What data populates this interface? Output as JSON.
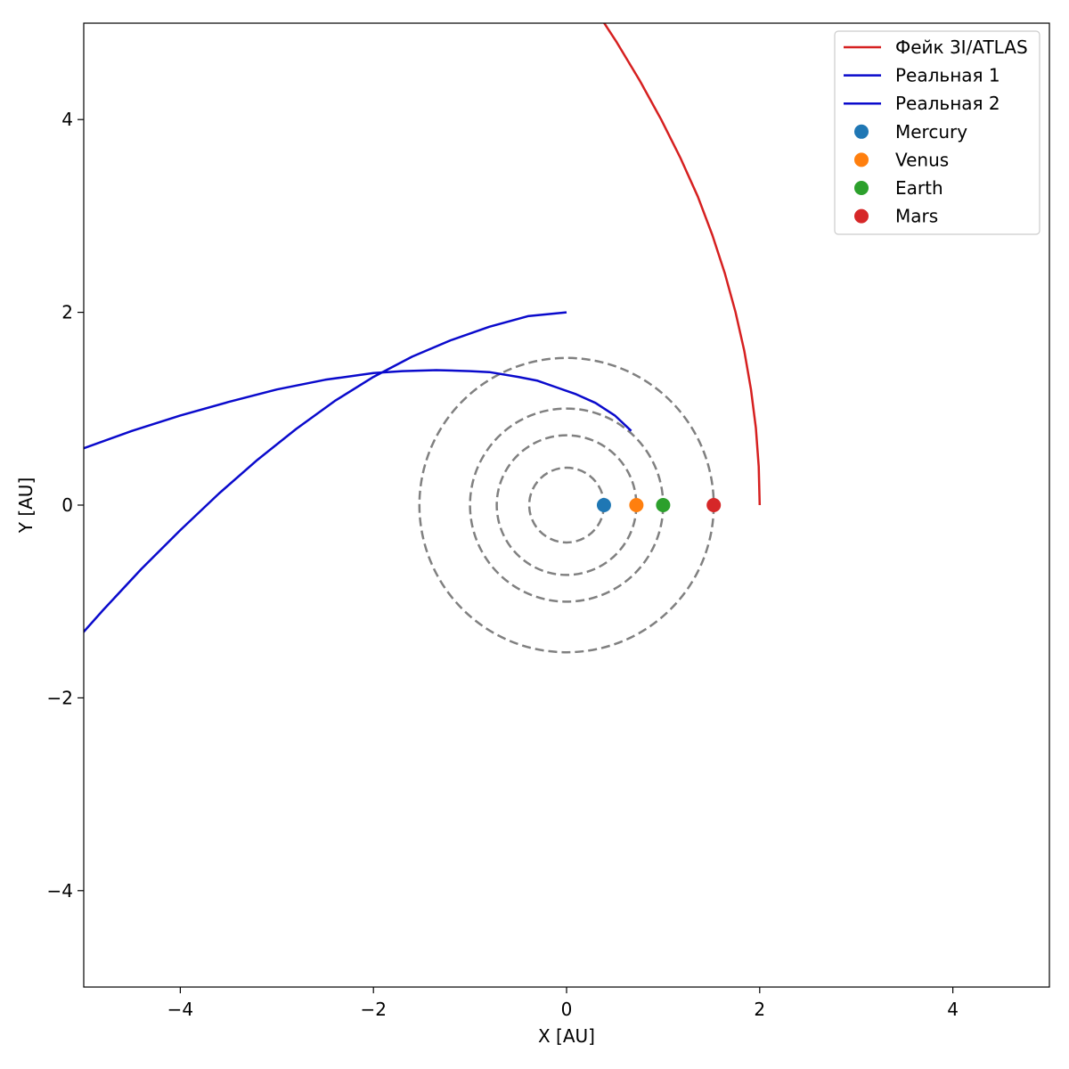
{
  "chart_data": {
    "type": "line",
    "title": "",
    "xlabel": "X [AU]",
    "ylabel": "Y [AU]",
    "xlim": [
      -5,
      5
    ],
    "ylim": [
      -5,
      5
    ],
    "xticks": [
      -4,
      -2,
      0,
      2,
      4
    ],
    "yticks": [
      -4,
      -2,
      0,
      2,
      4
    ],
    "xtick_labels": [
      "−4",
      "−2",
      "0",
      "2",
      "4"
    ],
    "ytick_labels": [
      "−4",
      "−2",
      "0",
      "2",
      "4"
    ],
    "grid": false,
    "legend_position": "top-right",
    "series": [
      {
        "name": "Фейк 3I/ATLAS",
        "color": "#d62020",
        "x": [
          2.0,
          1.99,
          1.96,
          1.91,
          1.84,
          1.75,
          1.64,
          1.51,
          1.36,
          1.18,
          0.98,
          0.76,
          0.52,
          0.26,
          -0.02,
          -0.32,
          -0.53
        ],
        "y": [
          0.0,
          0.4,
          0.8,
          1.2,
          1.6,
          2.0,
          2.4,
          2.8,
          3.2,
          3.6,
          4.0,
          4.4,
          4.8,
          5.2,
          5.6,
          6.0,
          6.3
        ]
      },
      {
        "name": "Реальная 1",
        "color": "#0a0acc",
        "x": [
          0.0,
          -0.4,
          -0.8,
          -1.2,
          -1.6,
          -2.0,
          -2.4,
          -2.8,
          -3.2,
          -3.6,
          -4.0,
          -4.4,
          -4.8,
          -5.2
        ],
        "y": [
          2.0,
          1.96,
          1.85,
          1.71,
          1.54,
          1.33,
          1.08,
          0.79,
          0.47,
          0.12,
          -0.26,
          -0.66,
          -1.09,
          -1.54
        ]
      },
      {
        "name": "Реальная 2",
        "color": "#0a0acc",
        "x": [
          0.67,
          0.5,
          0.3,
          0.1,
          -0.1,
          -0.3,
          -0.5,
          -0.8,
          -1.0,
          -1.35,
          -1.7,
          -2.0,
          -2.5,
          -3.0,
          -3.5,
          -4.0,
          -4.5,
          -5.0,
          -5.4
        ],
        "y": [
          0.77,
          0.93,
          1.06,
          1.15,
          1.22,
          1.29,
          1.33,
          1.38,
          1.39,
          1.4,
          1.39,
          1.37,
          1.3,
          1.2,
          1.07,
          0.93,
          0.77,
          0.59,
          0.44
        ]
      }
    ],
    "orbits": {
      "color": "#808080",
      "style": "dashed",
      "radii": [
        0.387,
        0.723,
        1.0,
        1.524
      ]
    },
    "planets": [
      {
        "name": "Mercury",
        "x": 0.387,
        "y": 0.0,
        "color": "#1f77b4"
      },
      {
        "name": "Venus",
        "x": 0.723,
        "y": 0.0,
        "color": "#ff7f0e"
      },
      {
        "name": "Earth",
        "x": 1.0,
        "y": 0.0,
        "color": "#2ca02c"
      },
      {
        "name": "Mars",
        "x": 1.524,
        "y": 0.0,
        "color": "#d62728"
      }
    ]
  }
}
